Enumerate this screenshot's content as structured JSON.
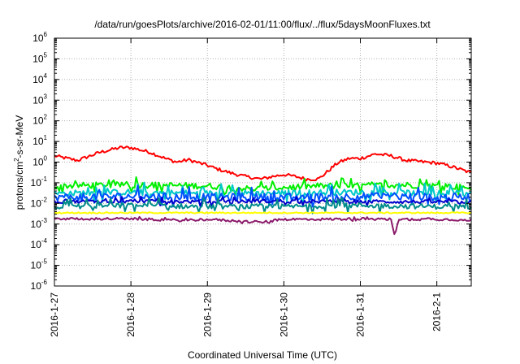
{
  "chart_data": {
    "type": "line",
    "title": "/data/run/goesPlots/archive/2016-02-01/11:00/flux/../flux/5daysMoonFluxes.txt",
    "xlabel": "Coordinated Universal Time (UTC)",
    "ylabel": "protons/cm2-s-sr-MeV",
    "ylabel_parts": {
      "pre": "protons/cm",
      "sup": "2",
      "post": "-s-sr-MeV"
    },
    "yscale": "log",
    "ylim": [
      1e-06,
      1000000
    ],
    "grid": true,
    "legend": "none",
    "x_ticks": [
      "2016-1-27",
      "2016-1-28",
      "2016-1-29",
      "2016-1-30",
      "2016-1-31",
      "2016-2-1"
    ],
    "x_range_days": [
      0,
      5.45
    ],
    "y_ticks": [
      {
        "base": "10",
        "exp": "6"
      },
      {
        "base": "10",
        "exp": "5"
      },
      {
        "base": "10",
        "exp": "4"
      },
      {
        "base": "10",
        "exp": "3"
      },
      {
        "base": "10",
        "exp": "2"
      },
      {
        "base": "10",
        "exp": "1"
      },
      {
        "base": "10",
        "exp": "0"
      },
      {
        "base": "10",
        "exp": "-1"
      },
      {
        "base": "10",
        "exp": "-2"
      },
      {
        "base": "10",
        "exp": "-3"
      },
      {
        "base": "10",
        "exp": "-4"
      },
      {
        "base": "10",
        "exp": "-5"
      },
      {
        "base": "10",
        "exp": "-6"
      }
    ],
    "series": [
      {
        "color": "#ff0000",
        "noise": 0.08,
        "spikes": 0.0,
        "x": [
          0,
          0.3,
          0.6,
          0.85,
          1.0,
          1.25,
          1.45,
          1.6,
          1.75,
          2.0,
          2.1,
          2.3,
          2.5,
          2.7,
          2.85,
          3.0,
          3.15,
          3.3,
          3.45,
          3.55,
          3.7,
          3.85,
          4.0,
          4.2,
          4.4,
          4.6,
          4.85,
          5.0,
          5.2,
          5.45
        ],
        "y": [
          2,
          1.2,
          3,
          5,
          5,
          3,
          1.5,
          1.0,
          1.3,
          0.7,
          0.5,
          0.3,
          0.2,
          0.15,
          0.2,
          0.25,
          0.2,
          0.15,
          0.15,
          0.3,
          0.9,
          1.5,
          1.5,
          2.5,
          2.0,
          1.2,
          1.0,
          0.9,
          0.6,
          0.3
        ]
      },
      {
        "color": "#00ee00",
        "noise": 0.15,
        "spikes": 0.25,
        "x": [
          0,
          1,
          2,
          2.6,
          3,
          3.5,
          4,
          4.5,
          5,
          5.45
        ],
        "y": [
          0.07,
          0.08,
          0.07,
          0.05,
          0.06,
          0.07,
          0.07,
          0.08,
          0.07,
          0.06
        ]
      },
      {
        "color": "#00c8c8",
        "noise": 0.15,
        "spikes": 0.35,
        "x": [
          0,
          1,
          2,
          3,
          4,
          5,
          5.45
        ],
        "y": [
          0.03,
          0.035,
          0.03,
          0.032,
          0.035,
          0.03,
          0.03
        ]
      },
      {
        "color": "#0050ff",
        "noise": 0.18,
        "spikes": 0.35,
        "x": [
          0,
          1,
          2,
          3,
          4,
          5,
          5.45
        ],
        "y": [
          0.02,
          0.022,
          0.02,
          0.02,
          0.022,
          0.02,
          0.02
        ]
      },
      {
        "color": "#0000cd",
        "noise": 0.08,
        "spikes": 0.15,
        "x": [
          0,
          1,
          2,
          3,
          4,
          5,
          5.45
        ],
        "y": [
          0.012,
          0.013,
          0.012,
          0.013,
          0.012,
          0.012,
          0.012
        ]
      },
      {
        "color": "#008b8b",
        "noise": 0.12,
        "spikes": 0.3,
        "x": [
          0,
          1,
          2,
          3,
          4,
          5,
          5.45
        ],
        "y": [
          0.007,
          0.008,
          0.007,
          0.007,
          0.008,
          0.007,
          0.007
        ]
      },
      {
        "color": "#ffff00",
        "noise": 0.03,
        "spikes": 0.0,
        "x": [
          0,
          1,
          2,
          3,
          4,
          5,
          5.45
        ],
        "y": [
          0.0035,
          0.0035,
          0.0035,
          0.0035,
          0.0035,
          0.0035,
          0.0035
        ]
      },
      {
        "color": "#8b1a6b",
        "noise": 0.06,
        "spikes": 0.05,
        "x": [
          0,
          1,
          1.65,
          2,
          2.7,
          3,
          3.5,
          4,
          4.4,
          4.45,
          4.5,
          5,
          5.45
        ],
        "y": [
          0.0018,
          0.0018,
          0.0015,
          0.0017,
          0.0012,
          0.0017,
          0.0017,
          0.0018,
          0.0017,
          0.0003,
          0.0017,
          0.0017,
          0.0016
        ]
      }
    ]
  }
}
